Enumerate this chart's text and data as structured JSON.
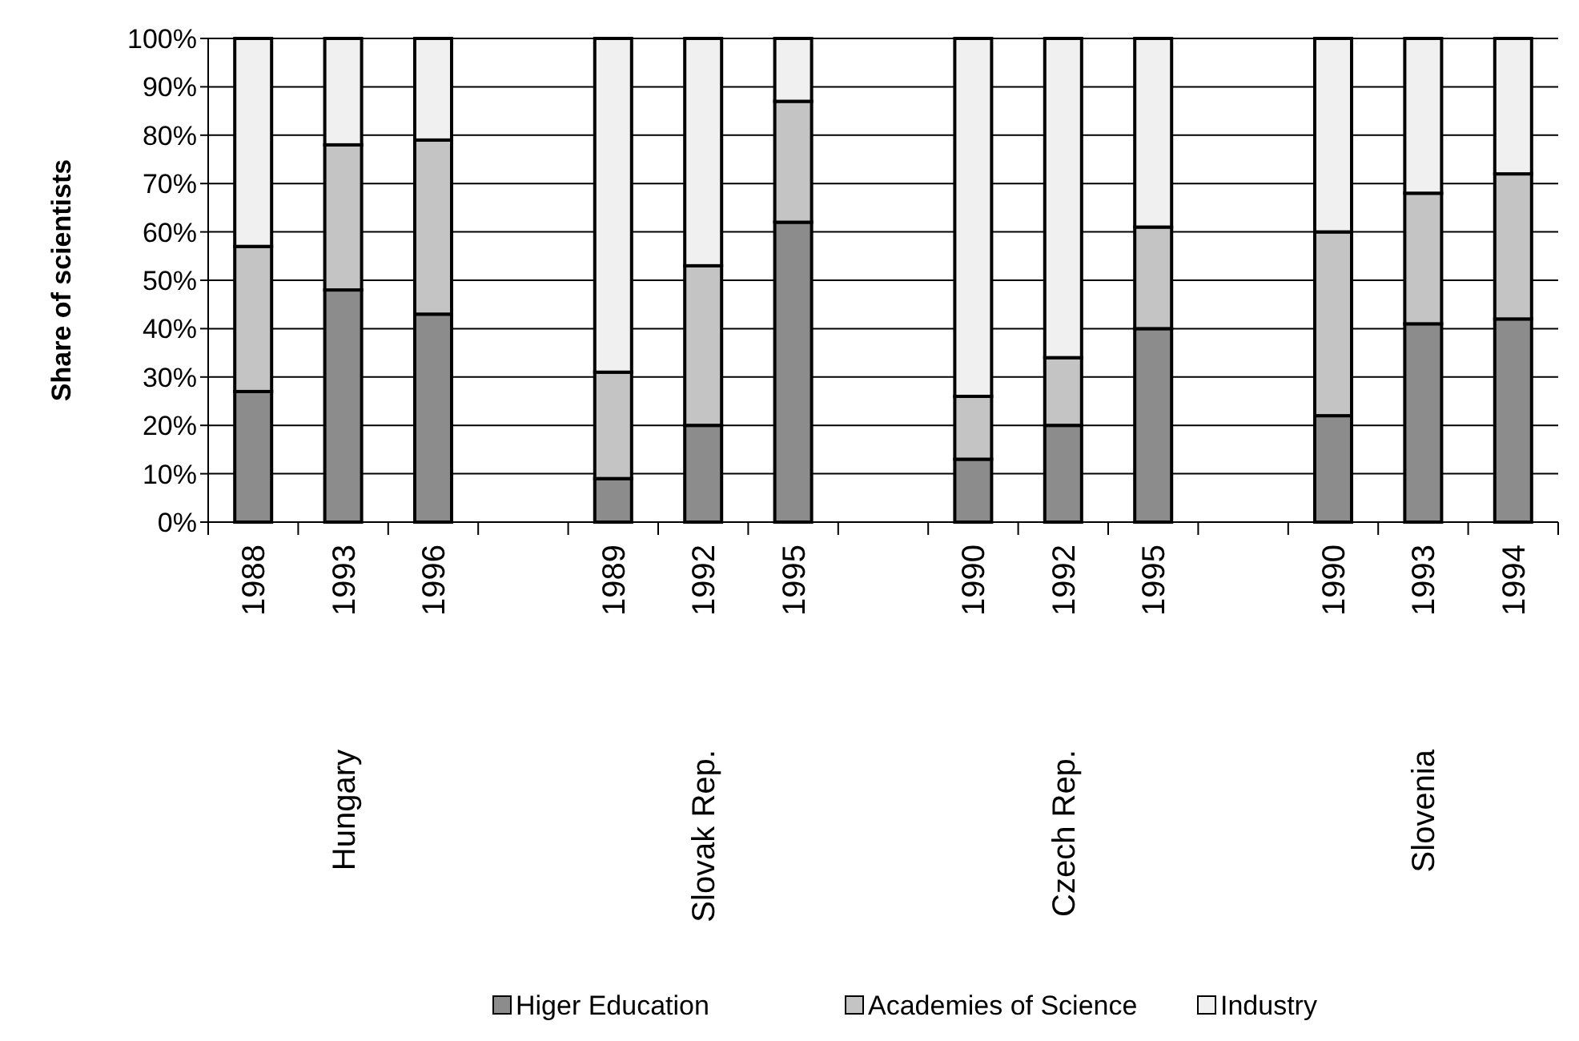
{
  "chart_data": {
    "type": "bar",
    "stacked": true,
    "ylabel": "Share of scientists",
    "categories": [
      "1988",
      "1993",
      "1996",
      null,
      "1989",
      "1992",
      "1995",
      null,
      "1990",
      "1992",
      "1995",
      null,
      "1990",
      "1993",
      "1994"
    ],
    "series": [
      {
        "name": "Higer Education",
        "color": "#8c8c8c",
        "values": [
          27,
          48,
          43,
          null,
          9,
          20,
          62,
          null,
          13,
          20,
          40,
          null,
          22,
          41,
          42
        ]
      },
      {
        "name": "Academies of Science",
        "color": "#c4c4c4",
        "values": [
          30,
          30,
          36,
          null,
          22,
          33,
          25,
          null,
          13,
          14,
          21,
          null,
          38,
          27,
          30
        ]
      },
      {
        "name": "Industry",
        "color": "#f0f0f0",
        "values": [
          43,
          22,
          21,
          null,
          69,
          47,
          13,
          null,
          74,
          66,
          39,
          null,
          40,
          32,
          28
        ]
      }
    ],
    "ylim": [
      0,
      100
    ],
    "yticks": [
      {
        "value": 0,
        "label": "0%"
      },
      {
        "value": 10,
        "label": "10%"
      },
      {
        "value": 20,
        "label": "20%"
      },
      {
        "value": 30,
        "label": "30%"
      },
      {
        "value": 40,
        "label": "40%"
      },
      {
        "value": 50,
        "label": "50%"
      },
      {
        "value": 60,
        "label": "60%"
      },
      {
        "value": 70,
        "label": "70%"
      },
      {
        "value": 80,
        "label": "80%"
      },
      {
        "value": 90,
        "label": "90%"
      },
      {
        "value": 100,
        "label": "100%"
      }
    ],
    "annotations": [
      "Hungary",
      "Slovak Rep.",
      "Czech Rep.",
      "Slovenia"
    ],
    "grid": "y",
    "legend": "bottom"
  }
}
